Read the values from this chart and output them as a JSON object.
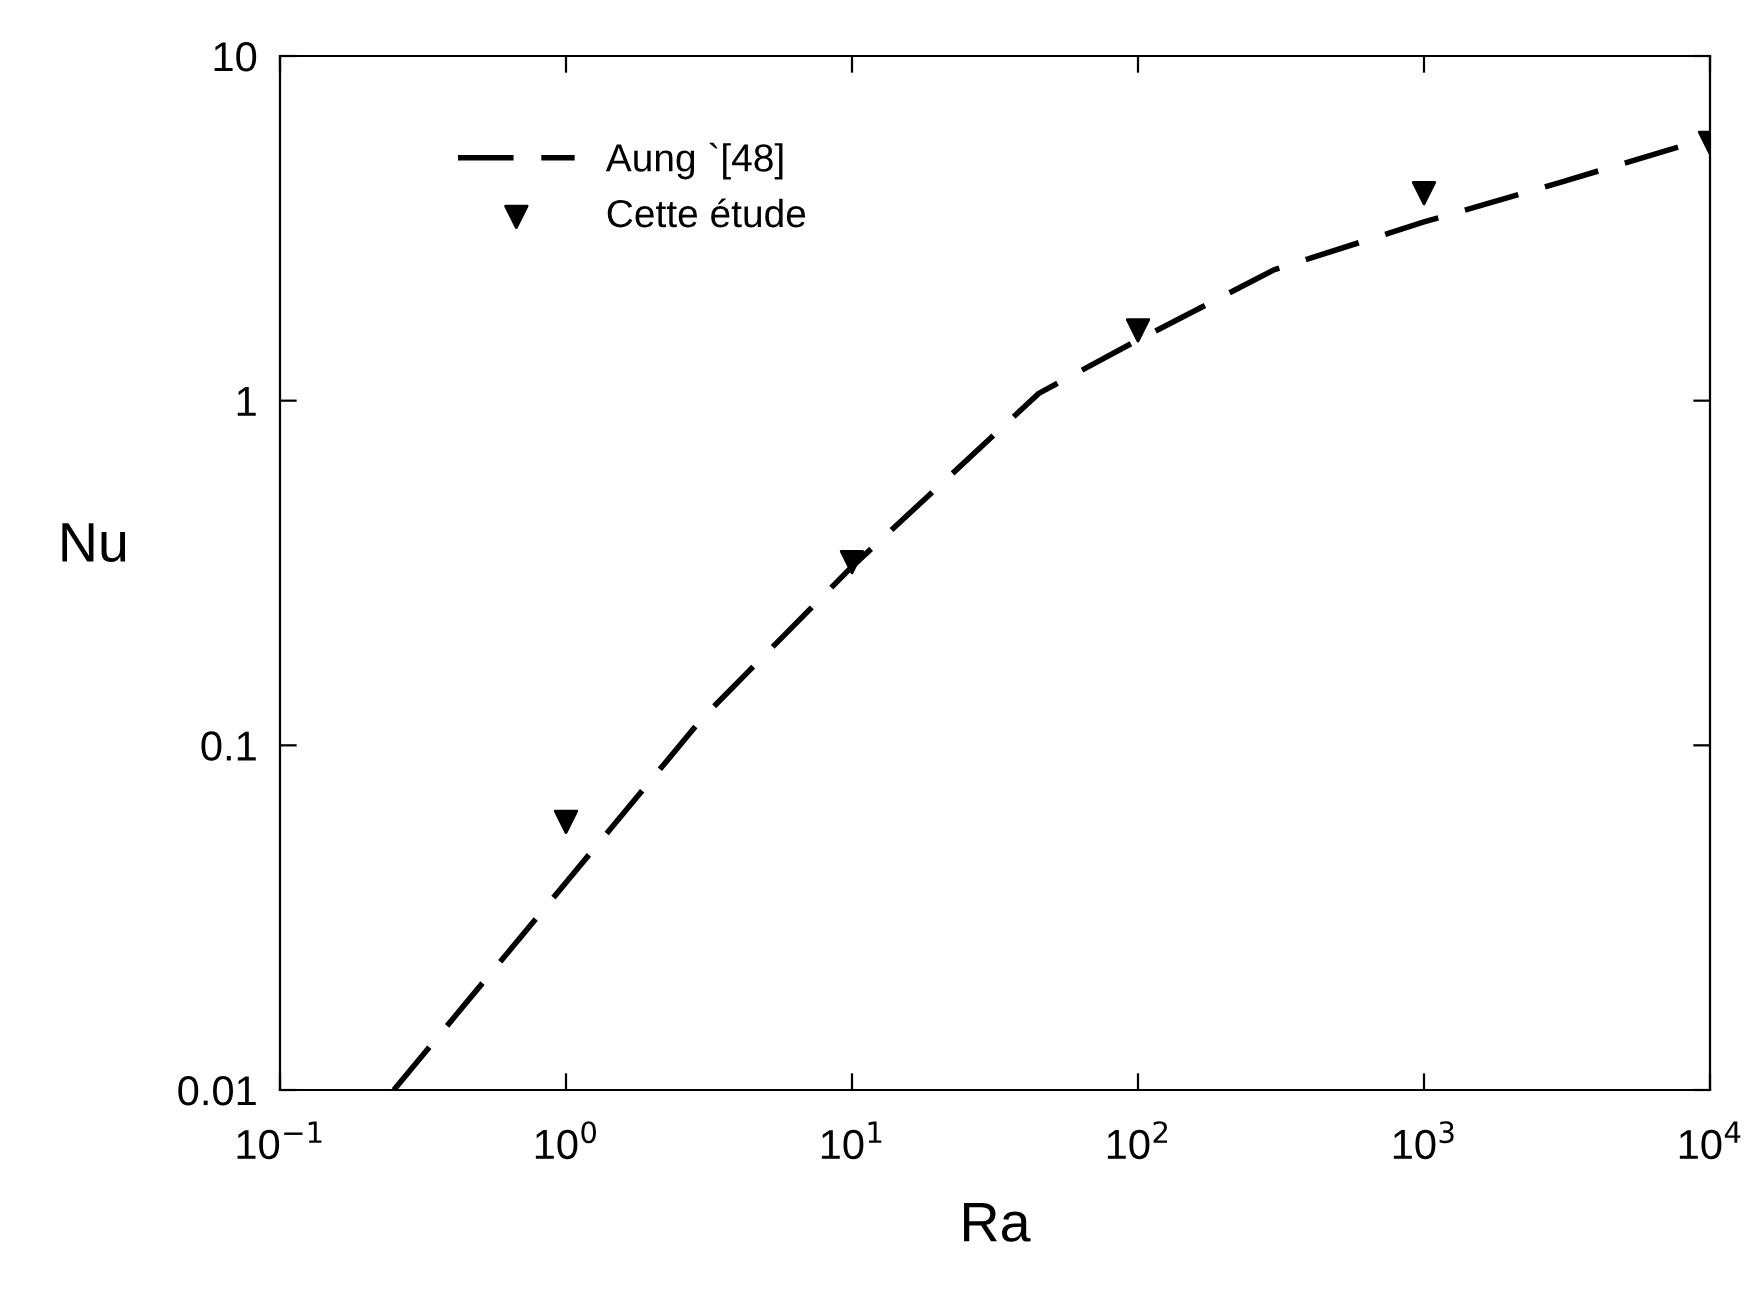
{
  "chart_data": {
    "type": "line",
    "xlabel": "Ra",
    "ylabel": "Nu",
    "log": "xy",
    "xlim": [
      0.1,
      10000
    ],
    "ylim": [
      0.01,
      10
    ],
    "xticks": [
      {
        "value": 0.1,
        "label": "10$^{−1}$"
      },
      {
        "value": 1,
        "label": "10$^{0}$"
      },
      {
        "value": 10,
        "label": "10$^{1}$"
      },
      {
        "value": 100,
        "label": "10$^{2}$"
      },
      {
        "value": 1000,
        "label": "10$^{3}$"
      },
      {
        "value": 10000,
        "label": "10$^{4}$"
      }
    ],
    "yticks": [
      0.01,
      0.1,
      1,
      10
    ],
    "grid": false,
    "legend": "top left",
    "series": [
      {
        "name": "Aung `[48]",
        "line_style": "dashed",
        "marker": "none",
        "color": "#000000",
        "x": [
          0.25,
          1,
          3,
          10,
          45,
          100,
          300,
          1000,
          3000,
          10000
        ],
        "values": [
          0.01,
          0.04,
          0.12,
          0.33,
          1.05,
          1.5,
          2.4,
          3.3,
          4.3,
          5.8
        ]
      },
      {
        "name": "Cette étude",
        "type": "scatter",
        "marker": "triangle",
        "color": "#000000",
        "x": [
          1,
          10,
          100,
          1000,
          10000
        ],
        "values": [
          0.06,
          0.34,
          1.6,
          4.0,
          5.6
        ]
      }
    ]
  }
}
